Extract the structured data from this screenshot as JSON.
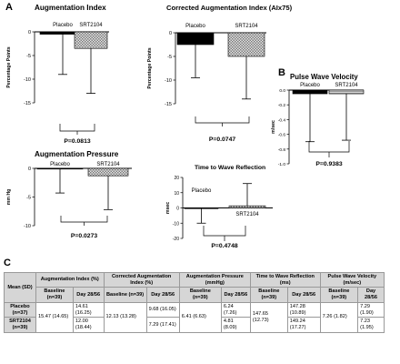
{
  "panels": {
    "a": "A",
    "b": "B",
    "c": "C"
  },
  "chart_data": [
    {
      "type": "bar",
      "title": "Augmentation Index",
      "ylabel": "Percentage Points",
      "categories": [
        "Placebo",
        "SRT2104"
      ],
      "values": [
        -0.5,
        -3.5
      ],
      "error_low": [
        -9,
        -13
      ],
      "ylim": [
        -15,
        0
      ],
      "yticks": [
        0,
        -5,
        -10,
        -15
      ],
      "pvalue": "P=0.0813"
    },
    {
      "type": "bar",
      "title": "Corrected Augmentation Index (AIx75)",
      "ylabel": "Percentage Points",
      "categories": [
        "Placebo",
        "SRT2104"
      ],
      "values": [
        -2.5,
        -5
      ],
      "error_low": [
        -9.5,
        -14
      ],
      "ylim": [
        -15,
        0
      ],
      "yticks": [
        0,
        -5,
        -10,
        -15
      ],
      "pvalue": "P=0.0747"
    },
    {
      "type": "bar",
      "title": "Pulse Wave Velocity",
      "ylabel": "m/sec",
      "categories": [
        "Placebo",
        "SRT2104"
      ],
      "values": [
        -0.05,
        -0.05
      ],
      "error_low": [
        -0.7,
        -0.68
      ],
      "ylim": [
        -1.0,
        0
      ],
      "yticks": [
        0,
        -0.2,
        -0.4,
        -0.6,
        -0.8,
        -1.0
      ],
      "ytick_labels": [
        "0.0",
        "-0.2",
        "-0.4",
        "-0.6",
        "-0.8",
        "-1.0"
      ],
      "pvalue": "P=0.9383"
    },
    {
      "type": "bar",
      "title": "Augmentation Pressure",
      "ylabel": "mm Hg",
      "categories": [
        "Placebo",
        "SRT2104"
      ],
      "values": [
        -0.1,
        -1.3
      ],
      "error_low": [
        -4.3,
        -7.2
      ],
      "ylim": [
        -10,
        0
      ],
      "yticks": [
        0,
        -5,
        -10
      ],
      "pvalue": "P=0.0273"
    },
    {
      "type": "bar",
      "title": "Time to Wave Reflection",
      "ylabel": "msec",
      "categories": [
        "Placebo",
        "SRT2104"
      ],
      "values": [
        -0.3,
        1.4
      ],
      "error_low": [
        -10,
        null
      ],
      "error_high": [
        null,
        16
      ],
      "ylim": [
        -20,
        20
      ],
      "yticks": [
        20,
        10,
        0,
        -10,
        -20
      ],
      "pvalue": "P=0.4748"
    }
  ],
  "table": {
    "mean_label": "Mean (SD)",
    "headers": [
      "Augmentation Index (%)",
      "Corrected Augmentation Index (%)",
      "Augmentation Pressure (mmHg)",
      "Time to Wave Reflection (ms)",
      "Pulse Wave Velocity (m/sec)"
    ],
    "sub_baseline": "Baseline (n=39)",
    "sub_day": "Day 28/56",
    "rows": [
      {
        "label": "Placebo (n=37)",
        "baselines": [
          "15.47 (14.65)",
          "12.13 (13.28)",
          "6.41 (6.63)",
          "147.65 (12.73)",
          "7.26 (1.82)"
        ],
        "day_a": [
          "14.61 (16.25)",
          "9.68 (16.05)",
          "6.24 (7.26)",
          "147.28 (10.89)",
          "7.29 (1.90)"
        ]
      },
      {
        "label": "SRT2104 (n=39)",
        "day_b": [
          "12.00 (18.44)",
          "7.29 (17.41)",
          "4.81 (8.09)",
          "149.24 (17.27)",
          "7.23 (1.95)"
        ]
      }
    ]
  }
}
